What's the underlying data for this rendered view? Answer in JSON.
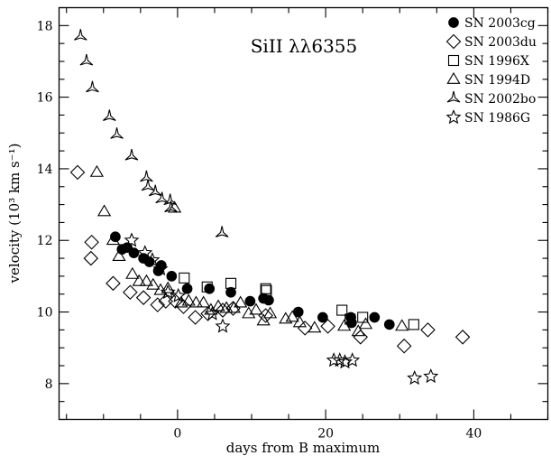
{
  "chart_data": {
    "type": "scatter",
    "annotation": "SiII λλ6355",
    "xlabel": "days from B maximum",
    "ylabel": "velocity (10³ km s⁻¹)",
    "xlim": [
      -16,
      50
    ],
    "ylim": [
      7,
      18.5
    ],
    "xticks": [
      0,
      20,
      40
    ],
    "yticks": [
      8,
      10,
      12,
      14,
      16,
      18
    ],
    "grid": false,
    "legend_position": "top-right",
    "series": [
      {
        "name": "SN 2003cg",
        "marker": "filled-circle",
        "x": [
          -8.4,
          -7.5,
          -6.8,
          -5.9,
          -4.6,
          -3.8,
          -2.6,
          -2.2,
          -0.8,
          1.3,
          4.3,
          7.2,
          9.8,
          11.6,
          12.3,
          16.3,
          19.6,
          23.4,
          23.5,
          26.6,
          28.6
        ],
        "y": [
          12.1,
          11.75,
          11.8,
          11.65,
          11.5,
          11.4,
          11.15,
          11.3,
          11.0,
          10.65,
          10.65,
          10.55,
          10.3,
          10.38,
          10.33,
          10.0,
          9.85,
          9.85,
          9.7,
          9.85,
          9.65
        ]
      },
      {
        "name": "SN 2003du",
        "marker": "open-diamond",
        "x": [
          -13.5,
          -11.6,
          -11.7,
          -8.7,
          -6.4,
          -4.6,
          -2.7,
          -1.6,
          -0.3,
          0.8,
          2.4,
          4.1,
          6.1,
          7.5,
          11.9,
          17.2,
          20.3,
          24.7,
          30.6,
          33.8,
          38.5
        ],
        "y": [
          13.9,
          11.95,
          11.5,
          10.8,
          10.55,
          10.4,
          10.2,
          10.3,
          10.3,
          10.15,
          9.85,
          9.95,
          10.05,
          10.1,
          9.9,
          9.55,
          9.6,
          9.3,
          9.05,
          9.5,
          9.3
        ]
      },
      {
        "name": "SN 1996X",
        "marker": "open-square",
        "x": [
          0.9,
          4.0,
          7.2,
          11.9,
          12.0,
          22.2,
          23.3,
          25.0,
          31.9
        ],
        "y": [
          10.95,
          10.7,
          10.8,
          10.65,
          10.6,
          10.05,
          9.8,
          9.85,
          9.65
        ]
      },
      {
        "name": "SN 1994D",
        "marker": "open-triangle",
        "x": [
          -10.9,
          -9.9,
          -8.7,
          -7.9,
          -6.1,
          -5.2,
          -4.2,
          -3.3,
          -2.3,
          -1.3,
          -0.4,
          0.5,
          1.5,
          2.5,
          3.5,
          4.5,
          5.5,
          6.6,
          7.6,
          8.5,
          9.6,
          10.6,
          11.6,
          12.5,
          14.6,
          15.5,
          16.5,
          18.5,
          22.5,
          24.4,
          25.4,
          30.3
        ],
        "y": [
          13.9,
          12.8,
          12.0,
          11.55,
          11.05,
          10.85,
          10.85,
          10.75,
          10.6,
          10.65,
          12.9,
          10.25,
          10.3,
          10.25,
          10.25,
          10.05,
          10.15,
          10.1,
          10.1,
          10.25,
          9.95,
          10.05,
          9.75,
          9.95,
          9.8,
          9.85,
          9.7,
          9.55,
          9.6,
          9.45,
          9.65,
          9.6
        ]
      },
      {
        "name": "SN 2002bo",
        "marker": "open-tri-spoke",
        "x": [
          -13.1,
          -12.3,
          -11.5,
          -9.2,
          -8.2,
          -6.2,
          -4.2,
          -4.0,
          -3.0,
          -2.1,
          -1.0,
          -0.9,
          6.0
        ],
        "y": [
          17.7,
          17.0,
          16.25,
          15.45,
          14.95,
          14.35,
          13.75,
          13.5,
          13.35,
          13.15,
          13.1,
          12.9,
          12.2
        ]
      },
      {
        "name": "SN 1986G",
        "marker": "open-star",
        "x": [
          -6.2,
          -4.4,
          -3.4,
          -2.3,
          -1.3,
          0.1,
          4.7,
          6.1,
          21.1,
          21.9,
          22.6,
          23.6,
          32.0,
          34.2
        ],
        "y": [
          12.0,
          11.65,
          11.45,
          11.2,
          10.55,
          10.45,
          9.95,
          9.6,
          8.65,
          8.65,
          8.6,
          8.65,
          8.15,
          8.2
        ]
      }
    ]
  }
}
